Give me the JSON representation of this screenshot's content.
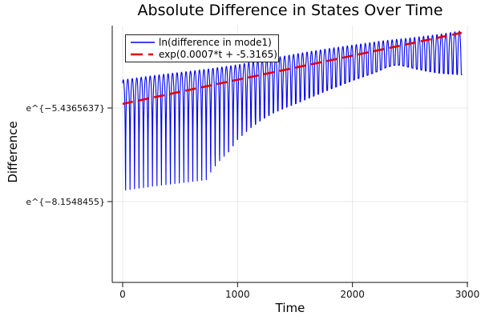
{
  "title": "Absolute Difference in States Over Time",
  "x_axis": {
    "label": "Time",
    "ticks": [
      {
        "label": "0",
        "value": 0
      },
      {
        "label": "1000",
        "value": 1000
      },
      {
        "label": "2000",
        "value": 2000
      },
      {
        "label": "3000",
        "value": 3000
      }
    ]
  },
  "y_axis": {
    "label": "Difference",
    "scale": "ln",
    "ticks": [
      {
        "label": "e^{−5.4365637}",
        "value": -5.4365637
      },
      {
        "label": "e^{−8.1548455}",
        "value": -8.1548455
      }
    ]
  },
  "legend": {
    "entries": [
      {
        "label": "ln(difference in mode1)",
        "color": "#0000ee",
        "style": "solid"
      },
      {
        "label": "exp(0.0007*t + -5.3165)",
        "color": "#e60000",
        "style": "dashed"
      }
    ]
  },
  "colors": {
    "series_blue": "#0000ee",
    "series_red": "#e60000",
    "grid": "#e8e8e8",
    "axis": "#111111"
  },
  "chart_data": {
    "type": "line",
    "title": "Absolute Difference in States Over Time",
    "xlabel": "Time",
    "ylabel": "Difference",
    "y_scale": "ln",
    "xlim": [
      -91,
      3007
    ],
    "ylim_ln": [
      -10.5,
      -3.04
    ],
    "grid": true,
    "legend_position": "top-left",
    "series": [
      {
        "name": "ln(difference in mode1)",
        "color": "#0000ee",
        "style": "solid",
        "t_range": [
          0,
          2955
        ],
        "model": "ln_value(t) = max(lower(t), upper(t) + ln|sin(pi*(t - first_min_t)/period)|)",
        "oscillation": {
          "period": 39,
          "first_min_t": 25
        },
        "envelope_upper_ln": [
          [
            0,
            -4.62
          ],
          [
            250,
            -4.5
          ],
          [
            500,
            -4.4
          ],
          [
            750,
            -4.3
          ],
          [
            1000,
            -4.18
          ],
          [
            1250,
            -4.02
          ],
          [
            1500,
            -3.87
          ],
          [
            1750,
            -3.73
          ],
          [
            2000,
            -3.61
          ],
          [
            2250,
            -3.49
          ],
          [
            2500,
            -3.4
          ],
          [
            2750,
            -3.3
          ],
          [
            2955,
            -3.19
          ]
        ],
        "envelope_lower_ln": [
          [
            0,
            -10.32
          ],
          [
            25,
            -10.32
          ],
          [
            64,
            -9.3
          ],
          [
            103,
            -8.85
          ],
          [
            142,
            -8.6
          ],
          [
            181,
            -8.4
          ],
          [
            220,
            -8.22
          ],
          [
            259,
            -8.08
          ],
          [
            298,
            -7.95
          ],
          [
            337,
            -7.86
          ],
          [
            376,
            -7.8
          ],
          [
            415,
            -7.78
          ],
          [
            454,
            -7.84
          ],
          [
            493,
            -8.0
          ],
          [
            532,
            -8.22
          ],
          [
            571,
            -8.32
          ],
          [
            610,
            -8.2
          ],
          [
            649,
            -8.0
          ],
          [
            688,
            -7.75
          ],
          [
            727,
            -7.52
          ],
          [
            766,
            -7.3
          ],
          [
            805,
            -7.12
          ],
          [
            844,
            -6.97
          ],
          [
            920,
            -6.72
          ],
          [
            1000,
            -6.35
          ],
          [
            1100,
            -6.05
          ],
          [
            1200,
            -5.8
          ],
          [
            1300,
            -5.6
          ],
          [
            1400,
            -5.45
          ],
          [
            1500,
            -5.32
          ],
          [
            1600,
            -5.18
          ],
          [
            1700,
            -5.04
          ],
          [
            1800,
            -4.9
          ],
          [
            1900,
            -4.77
          ],
          [
            2000,
            -4.64
          ],
          [
            2100,
            -4.52
          ],
          [
            2200,
            -4.4
          ],
          [
            2300,
            -4.25
          ],
          [
            2380,
            -4.18
          ],
          [
            2450,
            -4.22
          ],
          [
            2550,
            -4.3
          ],
          [
            2650,
            -4.37
          ],
          [
            2750,
            -4.42
          ],
          [
            2850,
            -4.45
          ],
          [
            2955,
            -4.47
          ]
        ]
      },
      {
        "name": "exp(0.0007*t + -5.3165)",
        "color": "#e60000",
        "style": "dashed",
        "t_range": [
          0,
          2950
        ],
        "fit": {
          "slope": 0.0007,
          "intercept": -5.3165
        }
      }
    ]
  }
}
